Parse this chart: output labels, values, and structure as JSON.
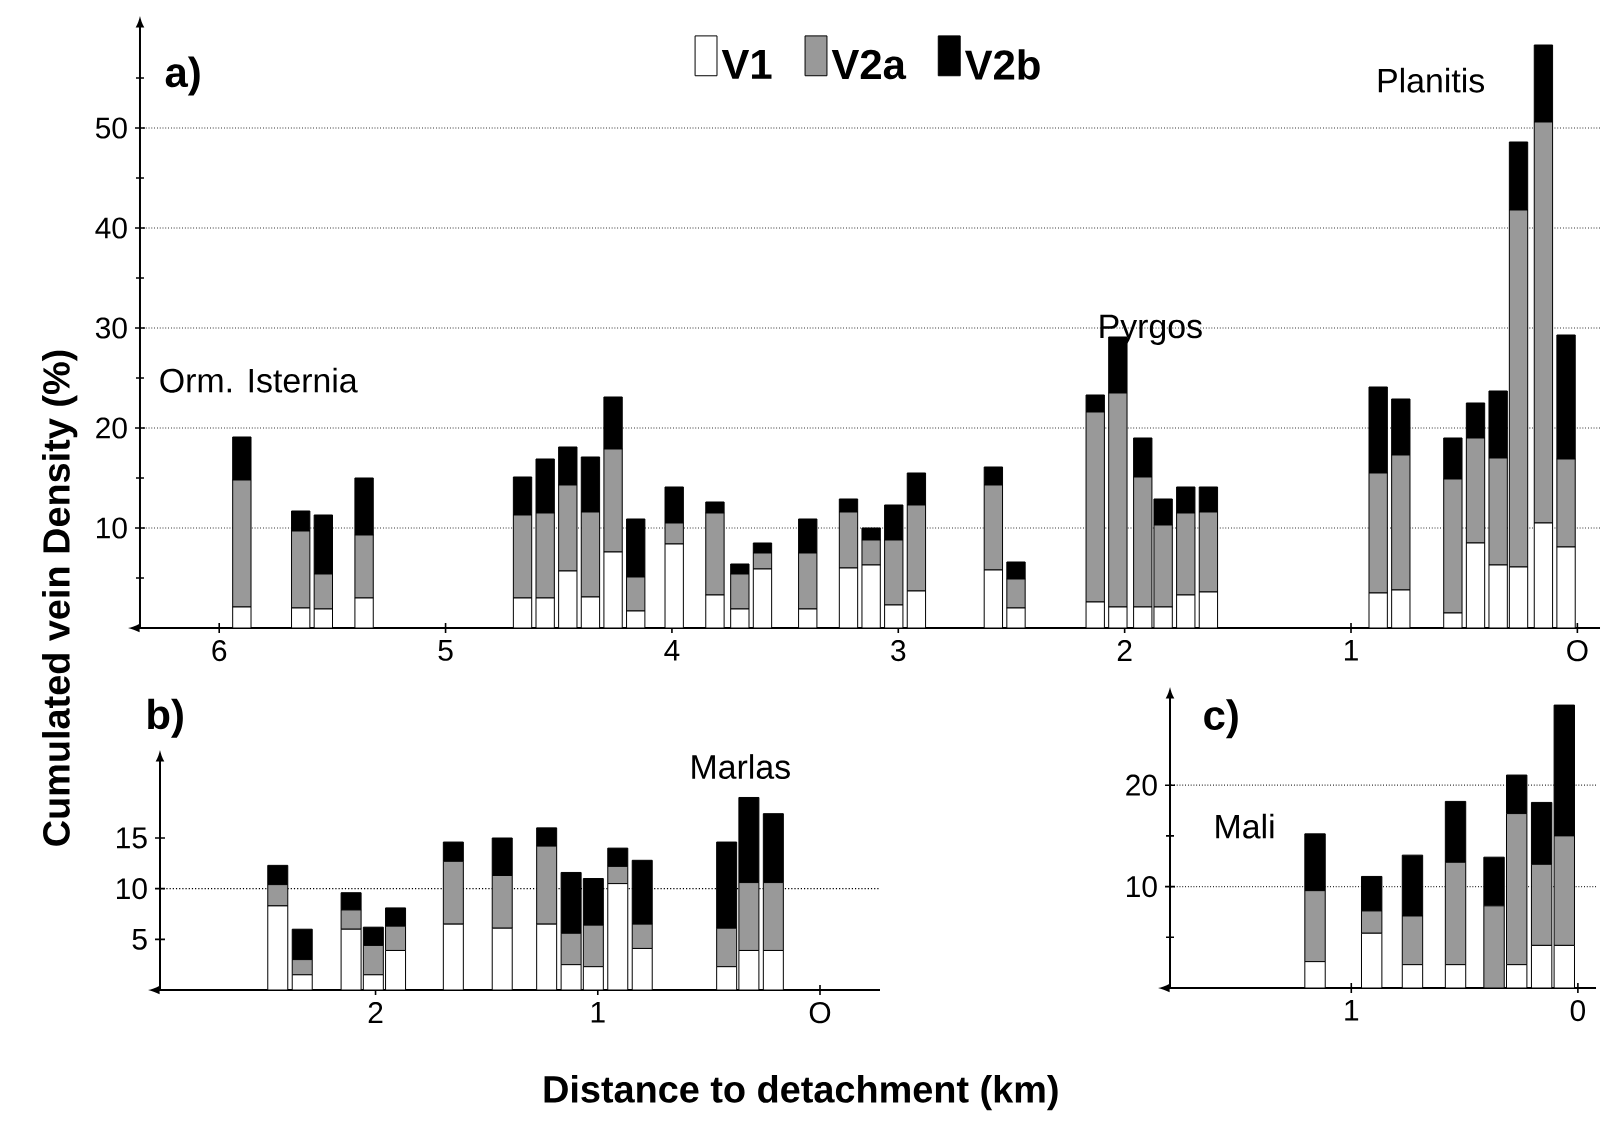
{
  "chart_data": [
    {
      "type": "bar",
      "stacked": true,
      "title": "a)",
      "ylabel": "Cumulated vein Density (%)",
      "x": [
        5.9,
        5.64,
        5.54,
        5.36,
        4.66,
        4.56,
        4.46,
        4.36,
        4.26,
        4.16,
        3.99,
        3.81,
        3.7,
        3.6,
        3.4,
        3.22,
        3.12,
        3.02,
        2.92,
        2.58,
        2.48,
        2.13,
        2.03,
        1.92,
        1.83,
        1.73,
        1.63,
        0.88,
        0.78,
        0.55,
        0.45,
        0.35,
        0.26,
        0.15,
        0.05
      ],
      "series": [
        {
          "name": "V1",
          "color": "#ffffff",
          "values": [
            2.1,
            2.0,
            1.9,
            3.0,
            3.0,
            3.0,
            5.7,
            3.1,
            7.6,
            1.7,
            8.4,
            3.3,
            1.9,
            5.9,
            1.9,
            6.0,
            6.3,
            2.3,
            3.7,
            5.8,
            2.0,
            2.6,
            2.1,
            2.1,
            2.1,
            3.3,
            3.6,
            3.5,
            3.8,
            1.5,
            8.5,
            6.3,
            6.1,
            10.5,
            8.1
          ]
        },
        {
          "name": "V2a",
          "color": "#999999",
          "values": [
            12.7,
            7.7,
            3.5,
            6.3,
            8.3,
            8.5,
            8.6,
            8.5,
            10.3,
            3.4,
            2.1,
            8.2,
            3.5,
            1.6,
            5.6,
            5.6,
            2.5,
            6.5,
            8.6,
            8.5,
            2.9,
            19.0,
            21.4,
            13.0,
            8.2,
            8.2,
            8.0,
            12.0,
            13.5,
            13.4,
            10.5,
            10.7,
            35.7,
            40.1,
            8.8
          ]
        },
        {
          "name": "V2b",
          "color": "#000000",
          "values": [
            4.3,
            2.0,
            5.9,
            5.7,
            3.8,
            5.4,
            3.8,
            5.5,
            5.2,
            5.8,
            3.6,
            1.1,
            1.0,
            1.0,
            3.4,
            1.3,
            1.2,
            3.5,
            3.2,
            1.8,
            1.7,
            1.7,
            5.6,
            3.9,
            2.6,
            2.6,
            2.5,
            8.6,
            5.6,
            4.1,
            3.5,
            6.7,
            6.8,
            7.7,
            12.4
          ]
        }
      ],
      "xlim": [
        6.35,
        -0.1
      ],
      "xticks": [
        6,
        5,
        4,
        3,
        2,
        1,
        {
          "value": 0,
          "label": "O"
        }
      ],
      "ylim": [
        0,
        60
      ],
      "yticks": [
        {
          "value": 5,
          "label": null
        },
        10,
        {
          "value": 15,
          "label": null
        },
        20,
        {
          "value": 25,
          "label": null
        },
        30,
        {
          "value": 35,
          "label": null
        },
        40,
        {
          "value": 45,
          "label": null
        },
        50,
        {
          "value": 55,
          "label": null
        }
      ],
      "grid": "y",
      "legend": "top",
      "annotations": [
        "Orm. Isternia",
        "Pyrgos",
        "Planitis"
      ]
    },
    {
      "type": "bar",
      "stacked": true,
      "title": "b)",
      "xlabel": "Distance to detachment (km)",
      "x": [
        2.44,
        2.33,
        2.11,
        2.01,
        1.91,
        1.65,
        1.43,
        1.23,
        1.12,
        1.02,
        0.91,
        0.8,
        0.42,
        0.32,
        0.21
      ],
      "series": [
        {
          "color": "#ffffff",
          "values": [
            8.3,
            1.5,
            6.0,
            1.5,
            3.9,
            6.5,
            6.1,
            6.5,
            2.5,
            2.3,
            10.5,
            4.1,
            2.3,
            3.9,
            3.9
          ]
        },
        {
          "color": "#999999",
          "values": [
            2.1,
            1.5,
            1.9,
            2.9,
            2.4,
            6.2,
            5.2,
            7.7,
            3.1,
            4.1,
            1.7,
            2.4,
            3.8,
            6.7,
            6.7
          ]
        },
        {
          "color": "#000000",
          "values": [
            1.9,
            3.0,
            1.7,
            1.8,
            1.8,
            1.9,
            3.7,
            1.8,
            6.0,
            4.6,
            1.8,
            6.3,
            8.5,
            8.4,
            6.8
          ]
        }
      ],
      "xlim": [
        2.97,
        -0.27
      ],
      "xticks": [
        2,
        1,
        {
          "value": 0,
          "label": "O"
        }
      ],
      "ylim": [
        0,
        22.5
      ],
      "yticks": [
        5,
        10,
        15
      ],
      "ref_lines": [
        {
          "axis": "y",
          "value": 10,
          "line_style": "dotted"
        }
      ],
      "annotations": [
        "Marlas"
      ]
    },
    {
      "type": "bar",
      "stacked": true,
      "title": "c)",
      "x": [
        1.16,
        0.91,
        0.73,
        0.54,
        0.37,
        0.27,
        0.16,
        0.06
      ],
      "series": [
        {
          "color": "#ffffff",
          "values": [
            2.6,
            5.4,
            2.3,
            2.3,
            0,
            2.3,
            4.2,
            4.2
          ]
        },
        {
          "color": "#999999",
          "values": [
            7.0,
            2.2,
            4.8,
            10.1,
            8.1,
            14.9,
            8.0,
            10.8
          ]
        },
        {
          "color": "#000000",
          "values": [
            5.6,
            3.4,
            6.0,
            6.0,
            4.8,
            3.8,
            6.1,
            12.9
          ]
        }
      ],
      "xlim": [
        1.8,
        -0.08
      ],
      "xticks": [
        1,
        0
      ],
      "ylim": [
        0,
        28.5
      ],
      "yticks": [
        {
          "value": 5,
          "label": null
        },
        10,
        {
          "value": 15,
          "label": null
        },
        20
      ],
      "grid": "y",
      "annotations": [
        "Mali"
      ]
    }
  ]
}
